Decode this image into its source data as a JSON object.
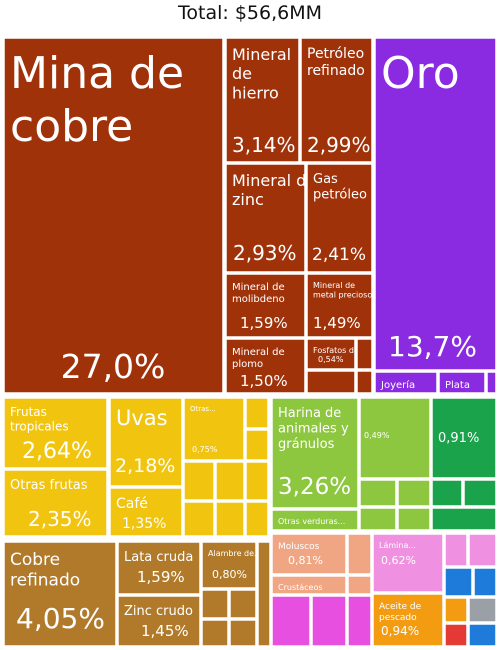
{
  "title": "Total: $56,6MM",
  "colors": {
    "mining": "#a0320a",
    "gold": "#8a2be2",
    "fruit": "#f1c40f",
    "food": "#8dc63f",
    "green": "#1aa34a",
    "metals": "#b07a2a",
    "marine": "#f0a583",
    "pink": "#f090e0",
    "magenta": "#e64fe0",
    "blue": "#1e7bd9",
    "orange": "#f39c12",
    "gray": "#9aa0a6",
    "red": "#e53935"
  },
  "chart_data": {
    "type": "treemap",
    "title": "Total: $56,6MM",
    "unit": "% of total",
    "items": [
      {
        "name": "Mina de cobre",
        "value": 27.0,
        "value_label": "27,0%",
        "group": "mining"
      },
      {
        "name": "Mineral de hierro",
        "value": 3.14,
        "value_label": "3,14%",
        "group": "mining"
      },
      {
        "name": "Petróleo refinado",
        "value": 2.99,
        "value_label": "2,99%",
        "group": "mining"
      },
      {
        "name": "Mineral de zinc",
        "value": 2.93,
        "value_label": "2,93%",
        "group": "mining"
      },
      {
        "name": "Gas petróleo",
        "value": 2.41,
        "value_label": "2,41%",
        "group": "mining"
      },
      {
        "name": "Mineral de molibdeno",
        "value": 1.59,
        "value_label": "1,59%",
        "group": "mining"
      },
      {
        "name": "Mineral de metal precioso",
        "value": 1.49,
        "value_label": "1,49%",
        "group": "mining"
      },
      {
        "name": "Mineral de plomo",
        "value": 1.5,
        "value_label": "1,50%",
        "group": "mining"
      },
      {
        "name": "Fosfatos de...",
        "value": 0.54,
        "value_label": "0,54%",
        "group": "mining"
      },
      {
        "name": "Oro",
        "value": 13.7,
        "value_label": "13,7%",
        "group": "gold"
      },
      {
        "name": "Joyería",
        "value": null,
        "value_label": "",
        "group": "gold"
      },
      {
        "name": "Plata",
        "value": null,
        "value_label": "",
        "group": "gold"
      },
      {
        "name": "Frutas tropicales",
        "value": 2.64,
        "value_label": "2,64%",
        "group": "fruit"
      },
      {
        "name": "Otras frutas",
        "value": 2.35,
        "value_label": "2,35%",
        "group": "fruit"
      },
      {
        "name": "Uvas",
        "value": 2.18,
        "value_label": "2,18%",
        "group": "fruit"
      },
      {
        "name": "Café",
        "value": 1.35,
        "value_label": "1,35%",
        "group": "fruit"
      },
      {
        "name": "Otras...",
        "value": 0.75,
        "value_label": "0,75%",
        "group": "fruit"
      },
      {
        "name": "Harina de animales y gránulos",
        "value": 3.26,
        "value_label": "3,26%",
        "group": "food"
      },
      {
        "name": "Otras verduras...",
        "value": null,
        "value_label": "",
        "group": "food"
      },
      {
        "name": "",
        "value": 0.49,
        "value_label": "0,49%",
        "group": "food"
      },
      {
        "name": "",
        "value": 0.91,
        "value_label": "0,91%",
        "group": "green"
      },
      {
        "name": "Cobre refinado",
        "value": 4.05,
        "value_label": "4,05%",
        "group": "metals"
      },
      {
        "name": "Lata cruda",
        "value": 1.59,
        "value_label": "1,59%",
        "group": "metals"
      },
      {
        "name": "Zinc crudo",
        "value": 1.45,
        "value_label": "1,45%",
        "group": "metals"
      },
      {
        "name": "Alambre de...",
        "value": 0.8,
        "value_label": "0,80%",
        "group": "metals"
      },
      {
        "name": "Moluscos",
        "value": 0.81,
        "value_label": "0,81%",
        "group": "marine"
      },
      {
        "name": "Crustáceos",
        "value": null,
        "value_label": "",
        "group": "marine"
      },
      {
        "name": "Lámina...",
        "value": 0.62,
        "value_label": "0,62%",
        "group": "pink"
      },
      {
        "name": "Aceite de pescado",
        "value": 0.94,
        "value_label": "0,94%",
        "group": "orange"
      }
    ]
  }
}
